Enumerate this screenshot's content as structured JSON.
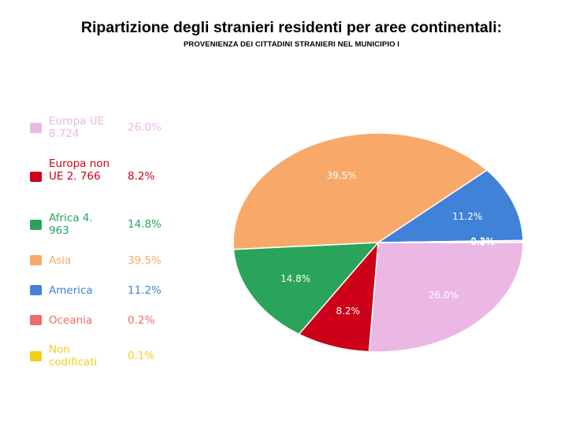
{
  "title": "Ripartizione degli stranieri residenti per aree continentali:",
  "subtitle": "PROVENIENZA DEI CITTADINI STRANIERI NEL MUNICIPIO I",
  "chart_data": {
    "type": "pie",
    "title": "Ripartizione degli stranieri residenti per aree continentali:",
    "subtitle": "PROVENIENZA DEI CITTADINI STRANIERI NEL MUNICIPIO I",
    "legend_position": "left",
    "slices": [
      {
        "label": "Europa UE 8.724",
        "value": 26.0,
        "display": "26.0%",
        "color": "#ebb7e3"
      },
      {
        "label": "Europa non UE 2. 766",
        "value": 8.2,
        "display": "8.2%",
        "color": "#cc0019"
      },
      {
        "label": "Africa 4. 963",
        "value": 14.8,
        "display": "14.8%",
        "color": "#2aa45a"
      },
      {
        "label": "Asia",
        "value": 39.5,
        "display": "39.5%",
        "color": "#f8a96a"
      },
      {
        "label": "America",
        "value": 11.2,
        "display": "11.2%",
        "color": "#3f82d8"
      },
      {
        "label": "Oceania",
        "value": 0.2,
        "display": "0.2%",
        "color": "#f06a6a"
      },
      {
        "label": "Non codificati",
        "value": 0.1,
        "display": "0.1%",
        "color": "#f5cd1c"
      }
    ]
  }
}
